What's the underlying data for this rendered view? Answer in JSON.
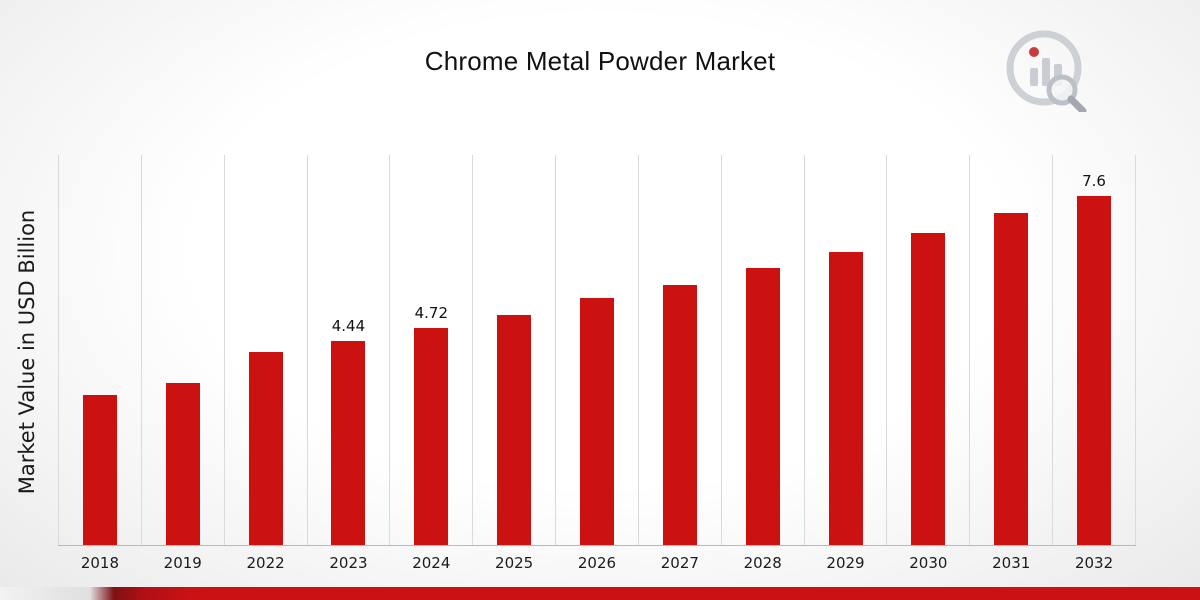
{
  "page": {
    "title": "Chrome Metal Powder Market"
  },
  "chart_data": {
    "type": "bar",
    "title": "Chrome Metal Powder Market",
    "xlabel": "",
    "ylabel": "Market Value in USD Billion",
    "categories": [
      "2018",
      "2019",
      "2022",
      "2023",
      "2024",
      "2025",
      "2026",
      "2027",
      "2028",
      "2029",
      "2030",
      "2031",
      "2032"
    ],
    "values": [
      3.27,
      3.53,
      4.2,
      4.44,
      4.72,
      5.01,
      5.38,
      5.66,
      6.03,
      6.39,
      6.8,
      7.23,
      7.6
    ],
    "data_labels": [
      "",
      "",
      "",
      "4.44",
      "4.72",
      "",
      "",
      "",
      "",
      "",
      "",
      "",
      "7.6"
    ],
    "ylim": [
      0,
      8.5
    ],
    "bar_color": "#cc1111",
    "grid": "vertical-category-separators",
    "legend": "none"
  },
  "branding": {
    "logo_name": "market-research-chart-logo",
    "accent_color": "#cc1114"
  }
}
